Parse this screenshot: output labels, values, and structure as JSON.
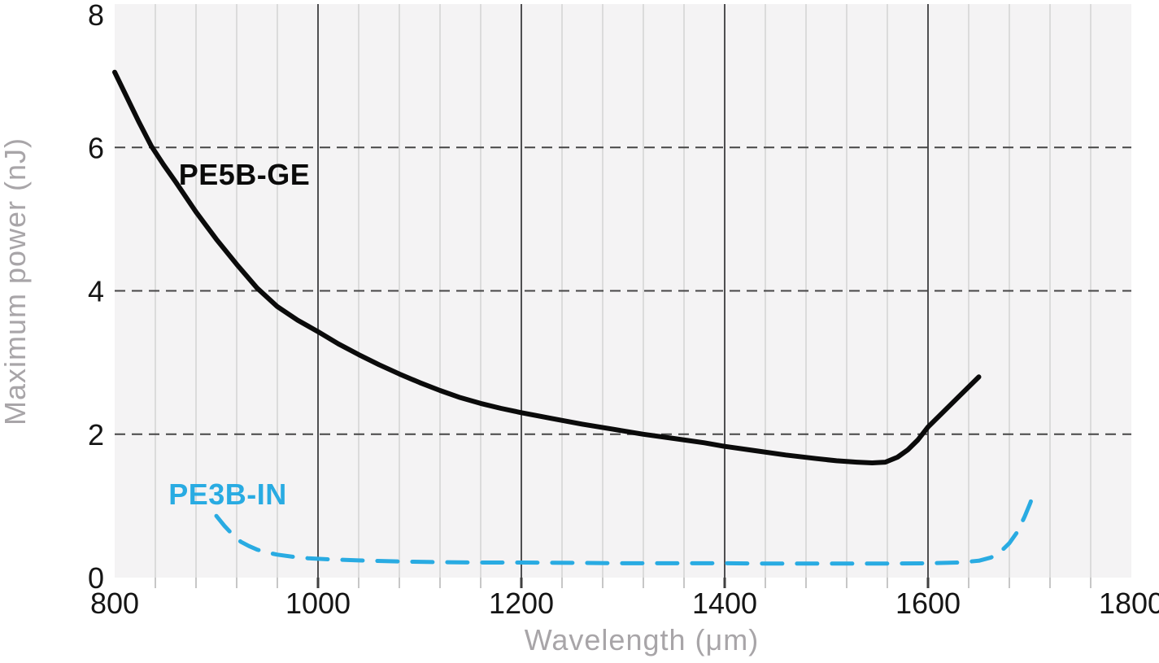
{
  "chart_data": {
    "type": "line",
    "title": "",
    "xlabel": "Wavelength (μm)",
    "ylabel": "Maximum power (nJ)",
    "xlim": [
      800,
      1800
    ],
    "ylim": [
      0,
      8
    ],
    "x_major_ticks": [
      800,
      1000,
      1200,
      1400,
      1600,
      1800
    ],
    "x_minor_step": 40,
    "y_ticks": [
      0,
      2,
      4,
      6,
      8
    ],
    "dashed_y_gridlines": [
      2,
      4,
      6
    ],
    "grid": "on",
    "legend": "inline-labels",
    "colors": {
      "plot_bg": "#f4f3f4",
      "grid_minor": "#dbdbdb",
      "grid_major": "#4f4f51",
      "grid_dashed": "#464646",
      "tick_minor": "#c7c7c7",
      "tick_major": "#3f3f3f",
      "tick_label": "#151515",
      "axis_title": "#a8a5a8",
      "series_black": "#0b0b0b",
      "series_blue": "#29abe2"
    },
    "series": [
      {
        "name": "PE5B-GE",
        "color": "#0b0b0b",
        "style": "solid",
        "label_anchor": {
          "x": 863,
          "y": 5.48
        },
        "points": [
          [
            800,
            7.05
          ],
          [
            812,
            6.7
          ],
          [
            824,
            6.35
          ],
          [
            836,
            6.02
          ],
          [
            848,
            5.76
          ],
          [
            860,
            5.52
          ],
          [
            880,
            5.1
          ],
          [
            900,
            4.72
          ],
          [
            920,
            4.37
          ],
          [
            940,
            4.04
          ],
          [
            960,
            3.78
          ],
          [
            980,
            3.59
          ],
          [
            1000,
            3.43
          ],
          [
            1020,
            3.26
          ],
          [
            1040,
            3.11
          ],
          [
            1060,
            2.97
          ],
          [
            1080,
            2.84
          ],
          [
            1100,
            2.72
          ],
          [
            1120,
            2.61
          ],
          [
            1140,
            2.51
          ],
          [
            1160,
            2.43
          ],
          [
            1180,
            2.36
          ],
          [
            1200,
            2.3
          ],
          [
            1230,
            2.22
          ],
          [
            1260,
            2.14
          ],
          [
            1290,
            2.07
          ],
          [
            1320,
            2.0
          ],
          [
            1350,
            1.94
          ],
          [
            1380,
            1.88
          ],
          [
            1400,
            1.83
          ],
          [
            1430,
            1.77
          ],
          [
            1460,
            1.71
          ],
          [
            1490,
            1.66
          ],
          [
            1510,
            1.63
          ],
          [
            1530,
            1.61
          ],
          [
            1545,
            1.6
          ],
          [
            1558,
            1.61
          ],
          [
            1570,
            1.68
          ],
          [
            1580,
            1.78
          ],
          [
            1590,
            1.92
          ],
          [
            1600,
            2.1
          ],
          [
            1615,
            2.31
          ],
          [
            1630,
            2.52
          ],
          [
            1650,
            2.8
          ]
        ]
      },
      {
        "name": "PE3B-IN",
        "color": "#29abe2",
        "style": "dashed",
        "label_anchor": {
          "x": 853,
          "y": 1.02
        },
        "points": [
          [
            900,
            0.86
          ],
          [
            908,
            0.72
          ],
          [
            916,
            0.6
          ],
          [
            924,
            0.5
          ],
          [
            932,
            0.44
          ],
          [
            940,
            0.39
          ],
          [
            950,
            0.35
          ],
          [
            960,
            0.32
          ],
          [
            975,
            0.29
          ],
          [
            990,
            0.27
          ],
          [
            1010,
            0.255
          ],
          [
            1040,
            0.24
          ],
          [
            1080,
            0.225
          ],
          [
            1120,
            0.215
          ],
          [
            1160,
            0.21
          ],
          [
            1200,
            0.21
          ],
          [
            1250,
            0.205
          ],
          [
            1300,
            0.2
          ],
          [
            1350,
            0.2
          ],
          [
            1400,
            0.2
          ],
          [
            1450,
            0.195
          ],
          [
            1500,
            0.195
          ],
          [
            1550,
            0.195
          ],
          [
            1600,
            0.2
          ],
          [
            1630,
            0.21
          ],
          [
            1650,
            0.235
          ],
          [
            1662,
            0.28
          ],
          [
            1672,
            0.37
          ],
          [
            1680,
            0.48
          ],
          [
            1688,
            0.64
          ],
          [
            1695,
            0.85
          ],
          [
            1700,
            1.02
          ],
          [
            1704,
            1.17
          ]
        ]
      }
    ]
  }
}
